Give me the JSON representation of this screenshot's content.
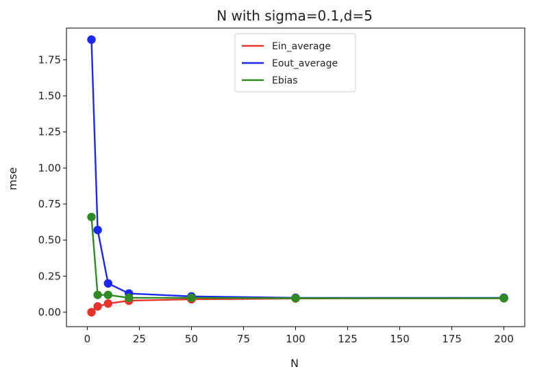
{
  "chart_data": {
    "type": "line",
    "title": "N with sigma=0.1,d=5",
    "xlabel": "N",
    "ylabel": "mse",
    "xlim": [
      -10,
      210
    ],
    "ylim": [
      -0.1,
      1.97
    ],
    "xticks": [
      0,
      25,
      50,
      75,
      100,
      125,
      150,
      175,
      200
    ],
    "xtick_labels": [
      "0",
      "25",
      "50",
      "75",
      "100",
      "125",
      "150",
      "175",
      "200"
    ],
    "yticks": [
      0.0,
      0.25,
      0.5,
      0.75,
      1.0,
      1.25,
      1.5,
      1.75
    ],
    "ytick_labels": [
      "0.00",
      "0.25",
      "0.50",
      "0.75",
      "1.00",
      "1.25",
      "1.50",
      "1.75"
    ],
    "grid": false,
    "legend_position": "top-center",
    "x": [
      2,
      5,
      10,
      20,
      50,
      100,
      200
    ],
    "series": [
      {
        "name": "Ein_average",
        "color": "#e8322a",
        "marker": "circle",
        "values": [
          0.0,
          0.04,
          0.06,
          0.08,
          0.09,
          0.095,
          0.097
        ]
      },
      {
        "name": "Eout_average",
        "color": "#1a28f0",
        "marker": "circle",
        "values": [
          1.89,
          0.57,
          0.2,
          0.13,
          0.11,
          0.1,
          0.1
        ]
      },
      {
        "name": "Ebias",
        "color": "#2e8a22",
        "marker": "circle",
        "values": [
          0.66,
          0.12,
          0.12,
          0.1,
          0.1,
          0.097,
          0.097
        ]
      }
    ]
  }
}
